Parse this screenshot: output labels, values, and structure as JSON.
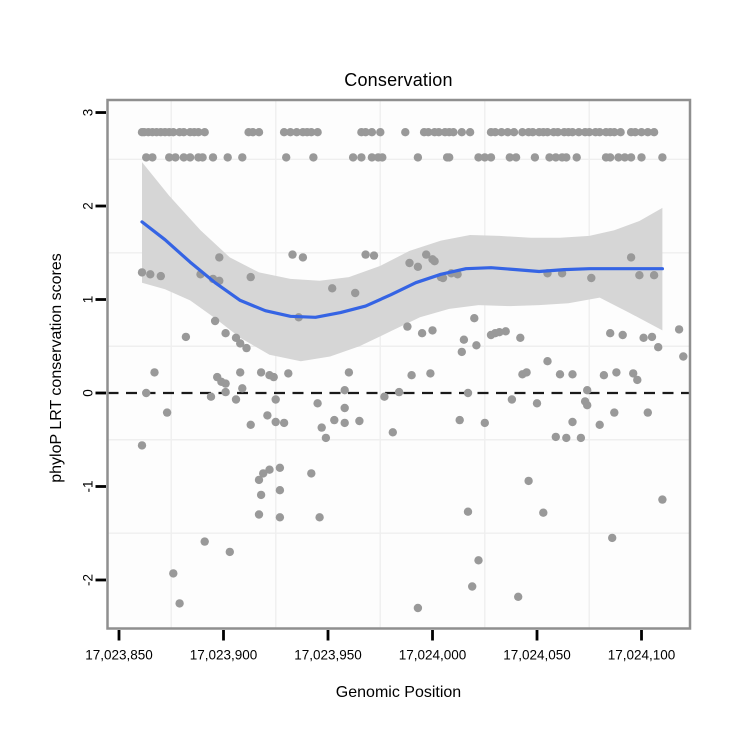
{
  "chart_data": {
    "type": "scatter",
    "title": "Conservation",
    "xlabel": "Genomic Position",
    "ylabel": "phyloP LRT conservation scores",
    "xlim": [
      17023844.5,
      17024123.2
    ],
    "ylim": [
      -2.519,
      3.134
    ],
    "grid": "minor-only",
    "legend_position": "none",
    "x_ticks": [
      {
        "value": 17023850,
        "label": "17,023,850"
      },
      {
        "value": 17023900,
        "label": "17,023,900"
      },
      {
        "value": 17023950,
        "label": "17,023,950"
      },
      {
        "value": 17024000,
        "label": "17,024,000"
      },
      {
        "value": 17024050,
        "label": "17,024,050"
      },
      {
        "value": 17024100,
        "label": "17,024,100"
      }
    ],
    "y_ticks": [
      {
        "value": 3,
        "label": "3"
      },
      {
        "value": 2,
        "label": "2"
      },
      {
        "value": 1,
        "label": "1"
      },
      {
        "value": 0,
        "label": "0"
      },
      {
        "value": -1,
        "label": "-1"
      },
      {
        "value": -2,
        "label": "-2"
      }
    ],
    "minor_grid_x": [
      17023875,
      17023925,
      17023975,
      17024025,
      17024075
    ],
    "minor_grid_y": [
      2.5,
      1.5,
      0.5,
      -0.5,
      -1.5
    ],
    "hline": {
      "y": 0,
      "style": "dashed"
    },
    "capped_rows": [
      {
        "score": 2.79,
        "positions": [
          17023861,
          17023862,
          17023864,
          17023866,
          17023868,
          17023870,
          17023872,
          17023874,
          17023876,
          17023879,
          17023881,
          17023884,
          17023886,
          17023888,
          17023891,
          17023912,
          17023914,
          17023917,
          17023929,
          17023932,
          17023935,
          17023938,
          17023940,
          17023942,
          17023945,
          17023966,
          17023968,
          17023971,
          17023975,
          17023987,
          17023996,
          17023998,
          17024001,
          17024003,
          17024006,
          17024008,
          17024010,
          17024014,
          17024018,
          17024028,
          17024030,
          17024033,
          17024036,
          17024039,
          17024043,
          17024046,
          17024048,
          17024051,
          17024053,
          17024055,
          17024058,
          17024060,
          17024063,
          17024065,
          17024067,
          17024070,
          17024073,
          17024075,
          17024078,
          17024080,
          17024083,
          17024085,
          17024087,
          17024090,
          17024095,
          17024097,
          17024100,
          17024103,
          17024106
        ]
      },
      {
        "score": 2.52,
        "positions": [
          17023863,
          17023866,
          17023874,
          17023877,
          17023881,
          17023884,
          17023888,
          17023890,
          17023895,
          17023902,
          17023909,
          17023930,
          17023943,
          17023962,
          17023966,
          17023971,
          17023974,
          17023976,
          17023993,
          17024007,
          17024008,
          17024022,
          17024025,
          17024028,
          17024037,
          17024040,
          17024049,
          17024056,
          17024059,
          17024062,
          17024064,
          17024069,
          17024083,
          17024085,
          17024089,
          17024092,
          17024095,
          17024100,
          17024110
        ]
      }
    ],
    "points": [
      [
        17023861,
        1.29
      ],
      [
        17023865,
        1.27
      ],
      [
        17023870,
        1.25
      ],
      [
        17023889,
        1.27
      ],
      [
        17023895,
        1.22
      ],
      [
        17023898,
        1.2
      ],
      [
        17023913,
        1.24
      ],
      [
        17023898,
        1.45
      ],
      [
        17023933,
        1.48
      ],
      [
        17023938,
        1.45
      ],
      [
        17023952,
        1.12
      ],
      [
        17023963,
        1.07
      ],
      [
        17023936,
        0.81
      ],
      [
        17023968,
        1.48
      ],
      [
        17023972,
        1.47
      ],
      [
        17023989,
        1.39
      ],
      [
        17023993,
        1.35
      ],
      [
        17023997,
        1.48
      ],
      [
        17024000,
        1.43
      ],
      [
        17024001,
        1.41
      ],
      [
        17024004,
        1.24
      ],
      [
        17024005,
        1.23
      ],
      [
        17024009,
        1.28
      ],
      [
        17024012,
        1.27
      ],
      [
        17024055,
        1.28
      ],
      [
        17024062,
        1.28
      ],
      [
        17024076,
        1.23
      ],
      [
        17024095,
        1.45
      ],
      [
        17024099,
        1.26
      ],
      [
        17024106,
        1.26
      ],
      [
        17023896,
        0.77
      ],
      [
        17023882,
        0.6
      ],
      [
        17023901,
        0.64
      ],
      [
        17023906,
        0.59
      ],
      [
        17023908,
        0.53
      ],
      [
        17023911,
        0.48
      ],
      [
        17023988,
        0.71
      ],
      [
        17023995,
        0.64
      ],
      [
        17024000,
        0.67
      ],
      [
        17024020,
        0.8
      ],
      [
        17024015,
        0.57
      ],
      [
        17024014,
        0.44
      ],
      [
        17024021,
        0.51
      ],
      [
        17024028,
        0.62
      ],
      [
        17024030,
        0.64
      ],
      [
        17024032,
        0.65
      ],
      [
        17024035,
        0.66
      ],
      [
        17024042,
        0.59
      ],
      [
        17024055,
        0.34
      ],
      [
        17024085,
        0.64
      ],
      [
        17024091,
        0.62
      ],
      [
        17024101,
        0.59
      ],
      [
        17024105,
        0.6
      ],
      [
        17024108,
        0.49
      ],
      [
        17024118,
        0.68
      ],
      [
        17024120,
        0.39
      ],
      [
        17023867,
        0.22
      ],
      [
        17023897,
        0.17
      ],
      [
        17023899,
        0.12
      ],
      [
        17023901,
        0.1
      ],
      [
        17023908,
        0.22
      ],
      [
        17023918,
        0.22
      ],
      [
        17023922,
        0.19
      ],
      [
        17023924,
        0.17
      ],
      [
        17023931,
        0.21
      ],
      [
        17023960,
        0.22
      ],
      [
        17023863,
        0.0
      ],
      [
        17023901,
        0.01
      ],
      [
        17023909,
        0.05
      ],
      [
        17023958,
        0.03
      ],
      [
        17023984,
        0.01
      ],
      [
        17023990,
        0.19
      ],
      [
        17023999,
        0.21
      ],
      [
        17024017,
        0.0
      ],
      [
        17024043,
        0.2
      ],
      [
        17024045,
        0.22
      ],
      [
        17024061,
        0.2
      ],
      [
        17024067,
        0.2
      ],
      [
        17024074,
        0.03
      ],
      [
        17024082,
        0.19
      ],
      [
        17024088,
        0.22
      ],
      [
        17024096,
        0.21
      ],
      [
        17024098,
        0.14
      ],
      [
        17023894,
        -0.04
      ],
      [
        17023906,
        -0.07
      ],
      [
        17023925,
        -0.07
      ],
      [
        17023945,
        -0.11
      ],
      [
        17023873,
        -0.21
      ],
      [
        17023913,
        -0.34
      ],
      [
        17023921,
        -0.24
      ],
      [
        17023925,
        -0.31
      ],
      [
        17023929,
        -0.32
      ],
      [
        17023958,
        -0.16
      ],
      [
        17023953,
        -0.29
      ],
      [
        17023958,
        -0.32
      ],
      [
        17023965,
        -0.3
      ],
      [
        17023947,
        -0.37
      ],
      [
        17023949,
        -0.48
      ],
      [
        17023977,
        -0.04
      ],
      [
        17023981,
        -0.42
      ],
      [
        17024038,
        -0.07
      ],
      [
        17024050,
        -0.11
      ],
      [
        17024073,
        -0.09
      ],
      [
        17024074,
        -0.13
      ],
      [
        17024087,
        -0.21
      ],
      [
        17024103,
        -0.21
      ],
      [
        17024013,
        -0.29
      ],
      [
        17024025,
        -0.32
      ],
      [
        17024067,
        -0.31
      ],
      [
        17024080,
        -0.34
      ],
      [
        17024059,
        -0.47
      ],
      [
        17024064,
        -0.48
      ],
      [
        17024071,
        -0.48
      ],
      [
        17023861,
        -0.56
      ],
      [
        17023922,
        -0.82
      ],
      [
        17023927,
        -0.8
      ],
      [
        17023917,
        -0.93
      ],
      [
        17023919,
        -0.86
      ],
      [
        17023918,
        -1.09
      ],
      [
        17023927,
        -1.04
      ],
      [
        17023917,
        -1.3
      ],
      [
        17023927,
        -1.33
      ],
      [
        17023946,
        -1.33
      ],
      [
        17023942,
        -0.86
      ],
      [
        17024046,
        -0.94
      ],
      [
        17024017,
        -1.27
      ],
      [
        17024053,
        -1.28
      ],
      [
        17024110,
        -1.14
      ],
      [
        17024086,
        -1.55
      ],
      [
        17023891,
        -1.59
      ],
      [
        17023903,
        -1.7
      ],
      [
        17023876,
        -1.93
      ],
      [
        17023879,
        -2.25
      ],
      [
        17024022,
        -1.79
      ],
      [
        17024019,
        -2.07
      ],
      [
        17024041,
        -2.18
      ],
      [
        17023993,
        -2.3
      ]
    ],
    "smooth": {
      "name": "loess smooth",
      "points": [
        [
          17023861,
          1.83
        ],
        [
          17023872,
          1.64
        ],
        [
          17023884,
          1.4
        ],
        [
          17023896,
          1.18
        ],
        [
          17023908,
          0.99
        ],
        [
          17023920,
          0.88
        ],
        [
          17023932,
          0.82
        ],
        [
          17023944,
          0.81
        ],
        [
          17023956,
          0.86
        ],
        [
          17023968,
          0.93
        ],
        [
          17023980,
          1.05
        ],
        [
          17023992,
          1.18
        ],
        [
          17024004,
          1.27
        ],
        [
          17024016,
          1.33
        ],
        [
          17024028,
          1.34
        ],
        [
          17024040,
          1.32
        ],
        [
          17024051,
          1.3
        ],
        [
          17024063,
          1.32
        ],
        [
          17024075,
          1.33
        ],
        [
          17024087,
          1.33
        ],
        [
          17024099,
          1.33
        ],
        [
          17024110,
          1.33
        ]
      ]
    },
    "confidence_band": {
      "upper": [
        [
          17023861,
          2.47
        ],
        [
          17023874,
          2.11
        ],
        [
          17023889,
          1.74
        ],
        [
          17023903,
          1.45
        ],
        [
          17023917,
          1.29
        ],
        [
          17023932,
          1.22
        ],
        [
          17023946,
          1.2
        ],
        [
          17023960,
          1.24
        ],
        [
          17023975,
          1.36
        ],
        [
          17023989,
          1.52
        ],
        [
          17024004,
          1.63
        ],
        [
          17024018,
          1.69
        ],
        [
          17024032,
          1.68
        ],
        [
          17024047,
          1.66
        ],
        [
          17024061,
          1.66
        ],
        [
          17024075,
          1.68
        ],
        [
          17024087,
          1.74
        ],
        [
          17024099,
          1.84
        ],
        [
          17024110,
          1.98
        ]
      ],
      "lower": [
        [
          17023861,
          1.18
        ],
        [
          17023872,
          1.11
        ],
        [
          17023884,
          0.99
        ],
        [
          17023896,
          0.8
        ],
        [
          17023908,
          0.59
        ],
        [
          17023922,
          0.41
        ],
        [
          17023937,
          0.34
        ],
        [
          17023951,
          0.39
        ],
        [
          17023965,
          0.5
        ],
        [
          17023980,
          0.66
        ],
        [
          17023994,
          0.81
        ],
        [
          17024008,
          0.9
        ],
        [
          17024022,
          0.94
        ],
        [
          17024037,
          0.93
        ],
        [
          17024051,
          0.94
        ],
        [
          17024065,
          0.96
        ],
        [
          17024080,
          1.02
        ],
        [
          17024094,
          0.86
        ],
        [
          17024110,
          0.67
        ]
      ]
    },
    "colors": {
      "point": "#999999",
      "smooth_line": "#3564E4",
      "band": "#D6D6D6",
      "zero_line": "#1A1A1A",
      "panel_border": "#8F8F8F",
      "panel_background": "#FDFDFD",
      "minor_grid": "#EFEFEF",
      "tick": "#000000",
      "text": "#000000",
      "outer_background": "#FFFFFF"
    }
  }
}
